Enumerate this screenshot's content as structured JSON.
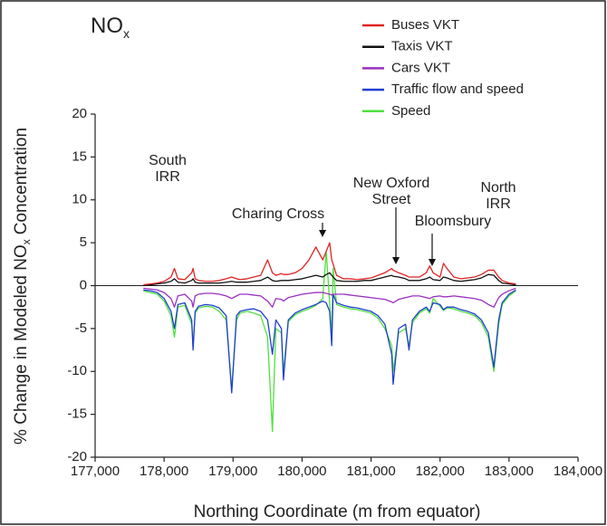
{
  "chart_data": {
    "type": "line",
    "title": {
      "text": "NO",
      "sub": "x"
    },
    "x_label": "Northing Coordinate (m from equator)",
    "y_label": {
      "before": "% Change in Modeled NO",
      "sub": "x",
      "after": "Concentration"
    },
    "x": [
      177700,
      177800,
      177900,
      178000,
      178100,
      178150,
      178200,
      178300,
      178400,
      178420,
      178450,
      178500,
      178600,
      178700,
      178800,
      178900,
      178980,
      179050,
      179100,
      179200,
      179300,
      179400,
      179500,
      179570,
      179620,
      179700,
      179730,
      179800,
      179900,
      180000,
      180100,
      180200,
      180300,
      180350,
      180400,
      180430,
      180450,
      180500,
      180600,
      180700,
      180800,
      180900,
      181000,
      181100,
      181200,
      181300,
      181320,
      181400,
      181500,
      181550,
      181600,
      181700,
      181800,
      181850,
      181900,
      182000,
      182050,
      182100,
      182200,
      182300,
      182400,
      182500,
      182600,
      182700,
      182780,
      182850,
      182900,
      183000,
      183100
    ],
    "series": [
      {
        "name": "Buses VKT",
        "color": "#e02424",
        "values": [
          0.1,
          0.2,
          0.3,
          0.5,
          1,
          2,
          0.8,
          0.7,
          1.5,
          2,
          0.8,
          0.6,
          0.5,
          0.5,
          0.6,
          0.8,
          1,
          0.8,
          0.7,
          0.8,
          1,
          1.2,
          3,
          1.5,
          1.2,
          1.4,
          1.3,
          1.3,
          1.5,
          2,
          3,
          4.5,
          3,
          4,
          5,
          3,
          2.5,
          1.2,
          0.8,
          0.8,
          0.7,
          0.8,
          0.9,
          1.2,
          1.5,
          2,
          1.8,
          1.5,
          1.2,
          1,
          1,
          1,
          1.5,
          2.3,
          1.5,
          1,
          2.6,
          2,
          1,
          0.8,
          0.9,
          1,
          1.3,
          1.8,
          1.8,
          1,
          0.6,
          0.3,
          0.2
        ]
      },
      {
        "name": "Taxis VKT",
        "color": "#111111",
        "values": [
          0,
          0.1,
          0.2,
          0.3,
          0.5,
          0.8,
          0.4,
          0.3,
          0.6,
          0.8,
          0.4,
          0.3,
          0.3,
          0.3,
          0.3,
          0.4,
          0.5,
          0.4,
          0.4,
          0.4,
          0.5,
          0.6,
          1,
          0.6,
          0.5,
          0.6,
          0.6,
          0.6,
          0.7,
          0.8,
          1,
          1.2,
          1,
          1.3,
          1.5,
          1.2,
          1,
          0.6,
          0.5,
          0.5,
          0.5,
          0.6,
          0.6,
          0.8,
          1,
          1.2,
          1.1,
          1,
          0.8,
          0.6,
          0.6,
          0.6,
          0.8,
          1,
          0.7,
          0.6,
          1,
          0.9,
          0.6,
          0.5,
          0.6,
          0.7,
          0.9,
          1.3,
          1.2,
          0.6,
          0.3,
          0.2,
          0.1
        ]
      },
      {
        "name": "Cars VKT",
        "color": "#9b30c0",
        "values": [
          -0.3,
          -0.4,
          -0.5,
          -0.8,
          -1.5,
          -2.5,
          -1.2,
          -1,
          -1.8,
          -2.5,
          -1.2,
          -1,
          -0.9,
          -0.9,
          -1,
          -1.2,
          -1.5,
          -1.2,
          -1,
          -1,
          -1.1,
          -1.2,
          -1.8,
          -2.5,
          -1.5,
          -1.6,
          -1.8,
          -1.4,
          -1.2,
          -1,
          -0.9,
          -0.8,
          -0.8,
          -0.9,
          -1,
          -1.1,
          -1,
          -1,
          -1,
          -1.1,
          -1.2,
          -1.3,
          -1.4,
          -1.5,
          -1.6,
          -1.9,
          -2,
          -1.6,
          -1.4,
          -1.3,
          -1.2,
          -1.2,
          -1.4,
          -1.5,
          -1.3,
          -1.2,
          -1.3,
          -1.3,
          -1.2,
          -1.3,
          -1.4,
          -1.5,
          -1.7,
          -2.2,
          -2.5,
          -1.4,
          -1,
          -0.6,
          -0.3
        ]
      },
      {
        "name": "Traffic flow and speed",
        "color": "#1f3fd0",
        "values": [
          -0.5,
          -0.6,
          -0.8,
          -1.5,
          -3,
          -5,
          -2.2,
          -2,
          -4,
          -7.5,
          -3,
          -2.4,
          -2.2,
          -2.3,
          -2.6,
          -3.5,
          -12.5,
          -3.5,
          -3,
          -2.8,
          -2.7,
          -3,
          -4,
          -8,
          -4,
          -5,
          -11,
          -4,
          -3.2,
          -2.8,
          -2.5,
          -2.2,
          -1.8,
          -2,
          -3,
          -7,
          -1,
          -2,
          -2.3,
          -2.5,
          -2.6,
          -2.8,
          -3,
          -3.5,
          -4.5,
          -8,
          -11.5,
          -5,
          -4.5,
          -7.5,
          -4,
          -3,
          -2.5,
          -3,
          -2,
          -2.2,
          -2.8,
          -2.5,
          -2.5,
          -2.8,
          -3,
          -3.3,
          -4,
          -5.5,
          -9.5,
          -4,
          -2,
          -1,
          -0.5
        ]
      },
      {
        "name": "Speed",
        "color": "#50e040",
        "values": [
          -0.6,
          -0.8,
          -1,
          -1.8,
          -3.5,
          -6,
          -2.5,
          -2.3,
          -4.5,
          -7,
          -3.2,
          -2.6,
          -2.4,
          -2.5,
          -3,
          -4,
          -12,
          -4,
          -3.2,
          -3,
          -3.2,
          -3.5,
          -6,
          -17,
          -5,
          -5.5,
          -10,
          -4.2,
          -3.4,
          -3,
          -2.7,
          -2.3,
          -1.5,
          4,
          -2,
          -6,
          2,
          -2.2,
          -2.5,
          -2.7,
          -2.8,
          -3,
          -3.2,
          -3.8,
          -5,
          -7,
          -10,
          -5.5,
          -5,
          -7,
          -4.3,
          -3.2,
          -2.7,
          -3.2,
          -1.5,
          -2.4,
          -2.9,
          -2.6,
          -2.7,
          -3,
          -3.2,
          -3.5,
          -4.3,
          -6,
          -10,
          -4.5,
          -2.2,
          -1.2,
          -0.6
        ]
      }
    ],
    "xlim": [
      177000,
      184000
    ],
    "xticks": [
      {
        "value": 177000,
        "label": "177,000"
      },
      {
        "value": 178000,
        "label": "178,000"
      },
      {
        "value": 179000,
        "label": "179,000"
      },
      {
        "value": 180000,
        "label": "180,000"
      },
      {
        "value": 181000,
        "label": "181,000"
      },
      {
        "value": 182000,
        "label": "182,000"
      },
      {
        "value": 183000,
        "label": "183,000"
      },
      {
        "value": 184000,
        "label": "184,000"
      }
    ],
    "ylim": [
      -20,
      20
    ],
    "yticks": [
      20,
      15,
      10,
      5,
      0,
      -5,
      -10,
      -15,
      -20
    ],
    "zero_line": true,
    "grid": false,
    "legend": "upper right",
    "annotations": [
      {
        "lines": [
          "South",
          "IRR"
        ]
      },
      {
        "lines": [
          "Charing Cross"
        ]
      },
      {
        "lines": [
          "New Oxford",
          "Street"
        ]
      },
      {
        "lines": [
          "Bloomsbury"
        ]
      },
      {
        "lines": [
          "North",
          "IRR"
        ]
      }
    ]
  }
}
